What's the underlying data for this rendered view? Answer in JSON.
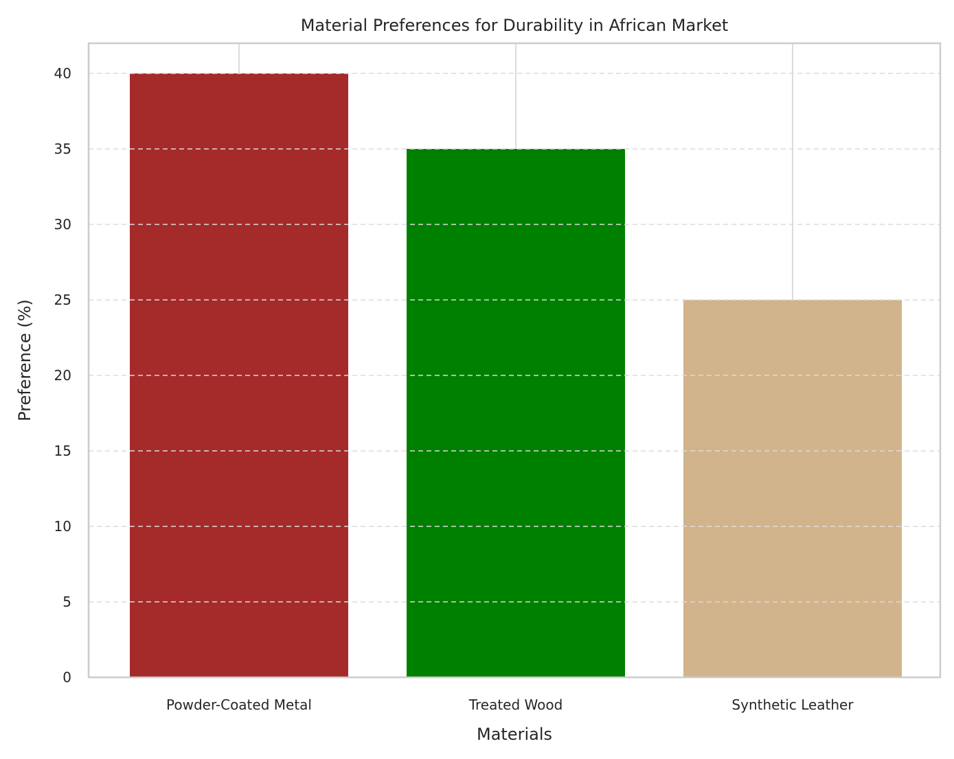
{
  "chart_data": {
    "type": "bar",
    "title": "Material Preferences for Durability in African Market",
    "xlabel": "Materials",
    "ylabel": "Preference (%)",
    "categories": [
      "Powder-Coated Metal",
      "Treated Wood",
      "Synthetic Leather"
    ],
    "values": [
      40,
      35,
      25
    ],
    "colors": [
      "#a52a2a",
      "#008000",
      "#d2b48c"
    ],
    "ylim": [
      0,
      42
    ],
    "yticks": [
      0,
      5,
      10,
      15,
      20,
      25,
      30,
      35,
      40
    ],
    "grid": "y-dashed",
    "legend": "none"
  }
}
